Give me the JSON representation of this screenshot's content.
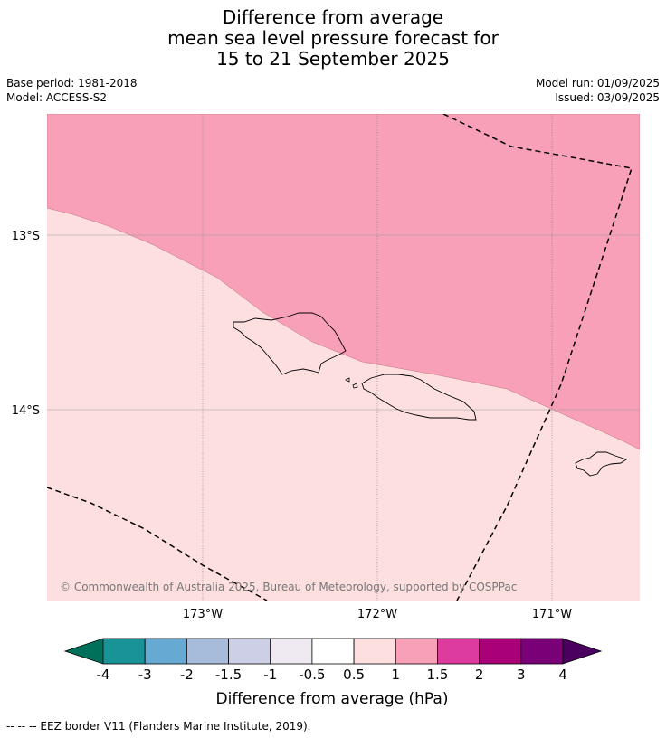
{
  "title": {
    "line1": "Difference from average",
    "line2": "mean sea level pressure forecast for",
    "line3": "15 to 21 September 2025"
  },
  "meta": {
    "base_period": "Base period: 1981-2018",
    "model": "Model: ACCESS-S2",
    "model_run": "Model run: 01/09/2025",
    "issued": "Issued: 03/09/2025"
  },
  "map": {
    "lat_labels": [
      "13°S",
      "14°S"
    ],
    "lon_labels": [
      "173°W",
      "172°W",
      "171°W"
    ],
    "copyright": "© Commonwealth of Australia 2025, Bureau of Meteorology, supported by COSPPac",
    "colors": {
      "band_1_to_1_5": "#f8a0b8",
      "band_0_5_to_1": "#fddfdf",
      "gridline": "#999999"
    }
  },
  "colorbar": {
    "ticks": [
      "-4",
      "-3",
      "-2",
      "-1.5",
      "-1",
      "-0.5",
      "0.5",
      "1",
      "1.5",
      "2",
      "3",
      "4"
    ],
    "colors": [
      "#1a9396",
      "#66aad4",
      "#a7bcdb",
      "#cccfe6",
      "#efe9f1",
      "#ffffff",
      "#fddfdf",
      "#f8a0b8",
      "#de3b9e",
      "#a90078",
      "#7a0077"
    ],
    "under_color": "#00705a",
    "over_color": "#4b005f",
    "label": "Difference from average (hPa)"
  },
  "footer": "--  --  -- EEZ border V11 (Flanders Marine Institute, 2019)."
}
